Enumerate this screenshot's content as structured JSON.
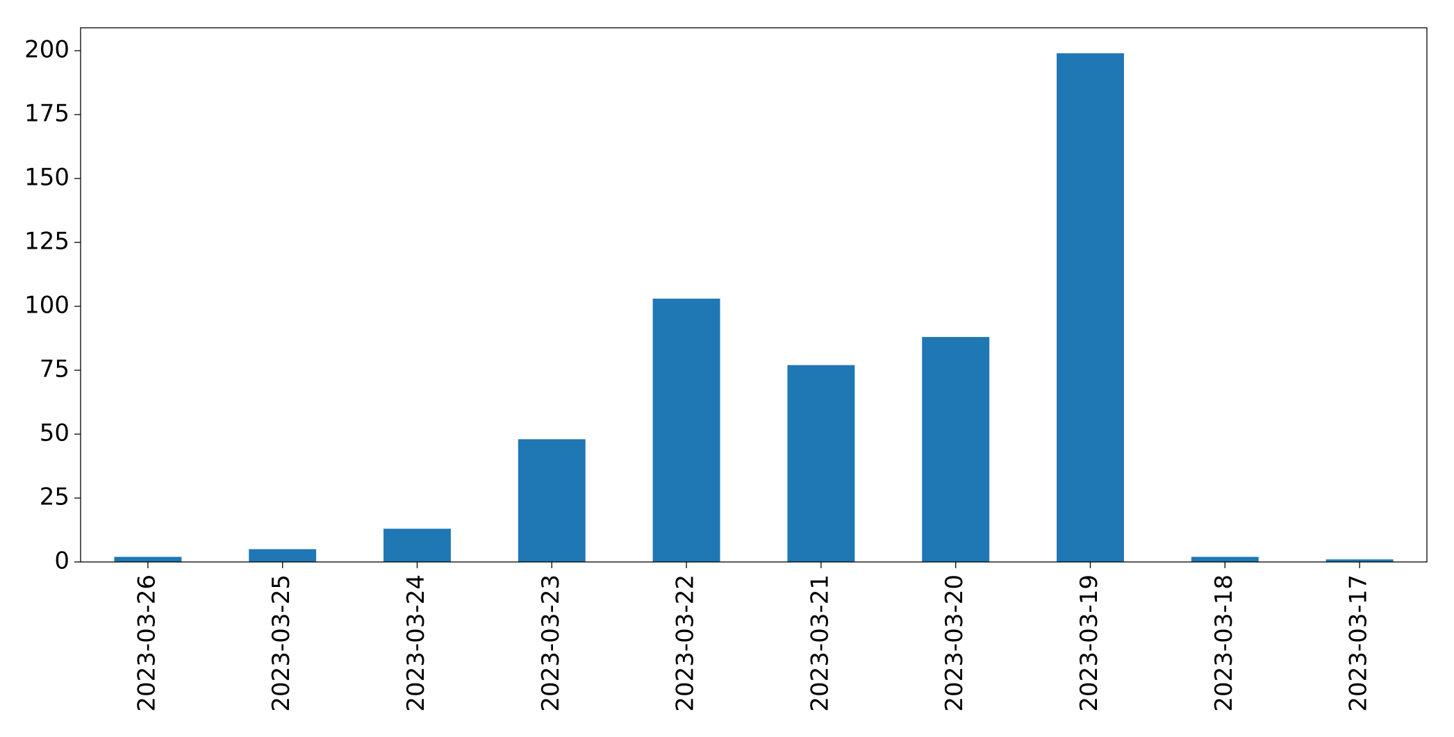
{
  "chart_data": {
    "type": "bar",
    "categories": [
      "2023-03-26",
      "2023-03-25",
      "2023-03-24",
      "2023-03-23",
      "2023-03-22",
      "2023-03-21",
      "2023-03-20",
      "2023-03-19",
      "2023-03-18",
      "2023-03-17"
    ],
    "values": [
      2,
      5,
      13,
      48,
      103,
      77,
      88,
      199,
      2,
      1
    ],
    "color": "#1f77b4",
    "ylim": [
      0,
      208.95
    ],
    "yticks": [
      0,
      25,
      50,
      75,
      100,
      125,
      150,
      175,
      200
    ],
    "grid": false
  }
}
